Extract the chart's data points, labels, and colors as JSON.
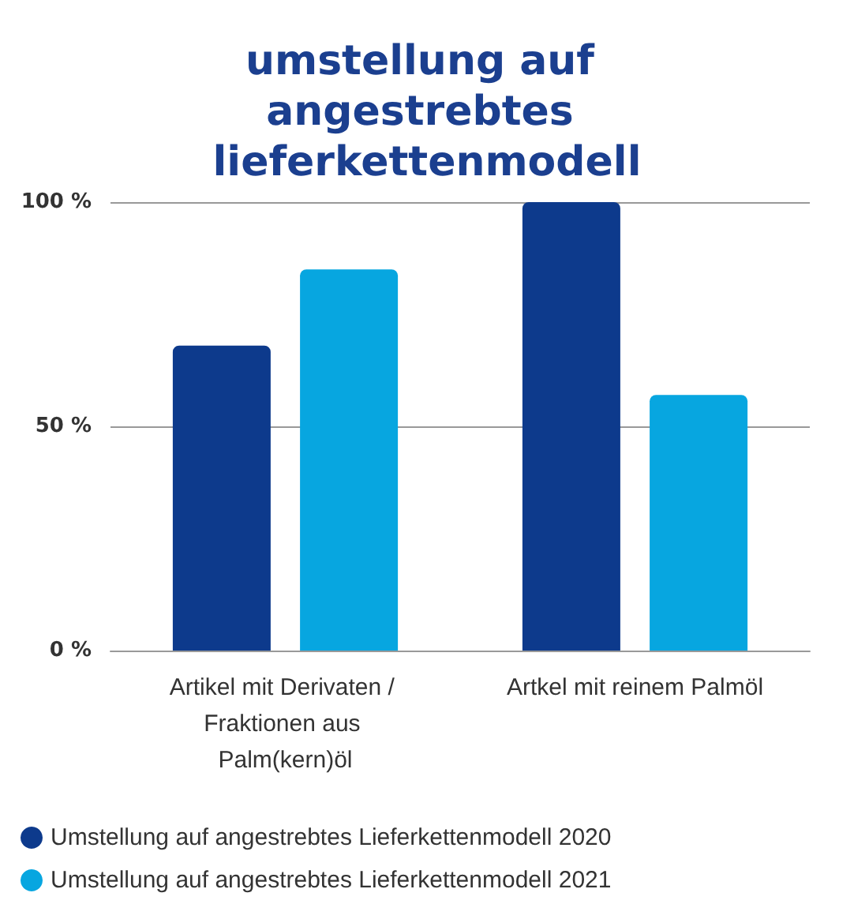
{
  "chart_data": {
    "type": "bar",
    "title": "umstellung auf angestrebtes lieferkettenmodell",
    "categories": [
      "Artikel mit Derivaten / Fraktionen aus Palm(kern)öl",
      "Artkel mit reinem Palmöl"
    ],
    "series": [
      {
        "name": "Umstellung auf angestrebtes Lieferkettenmodell 2020",
        "color": "#0d3a8c",
        "values": [
          68,
          100
        ]
      },
      {
        "name": "Umstellung auf angestrebtes Lieferkettenmodell 2021",
        "color": "#07a6e0",
        "values": [
          85,
          57
        ]
      }
    ],
    "ylim": [
      0,
      100
    ],
    "yticks": [
      {
        "value": 0,
        "label": "0 %"
      },
      {
        "value": 50,
        "label": "50 %"
      },
      {
        "value": 100,
        "label": "100 %"
      }
    ],
    "grid": "y",
    "legend": "bottom"
  }
}
